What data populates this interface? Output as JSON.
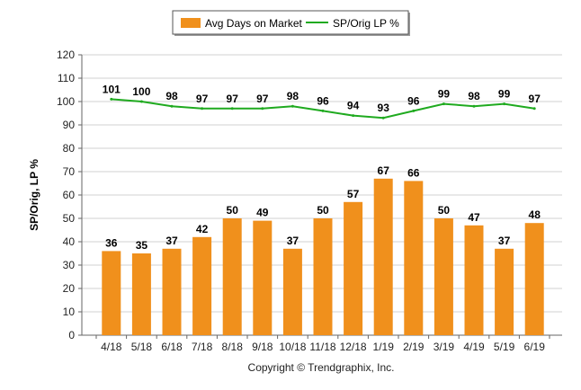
{
  "chart_data": {
    "type": "bar",
    "categories": [
      "4/18",
      "5/18",
      "6/18",
      "7/18",
      "8/18",
      "9/18",
      "10/18",
      "11/18",
      "12/18",
      "1/19",
      "2/19",
      "3/19",
      "4/19",
      "5/19",
      "6/19"
    ],
    "series": [
      {
        "name": "Avg Days on Market",
        "type": "bar",
        "color": "#f0901c",
        "values": [
          36,
          35,
          37,
          42,
          50,
          49,
          37,
          50,
          57,
          67,
          66,
          50,
          47,
          37,
          48
        ]
      },
      {
        "name": "SP/Orig LP %",
        "type": "line",
        "color": "#1faa1f",
        "values": [
          101,
          100,
          98,
          97,
          97,
          97,
          98,
          96,
          94,
          93,
          96,
          99,
          98,
          99,
          97
        ]
      }
    ],
    "ylabel": "SP/Orig, LP %",
    "ylim": [
      0,
      120
    ],
    "yticks": [
      0,
      10,
      20,
      30,
      40,
      50,
      60,
      70,
      80,
      90,
      100,
      110,
      120
    ],
    "grid": true,
    "legend_position": "top-center"
  },
  "footer": {
    "copyright": "Copyright © Trendgraphix, Inc."
  }
}
